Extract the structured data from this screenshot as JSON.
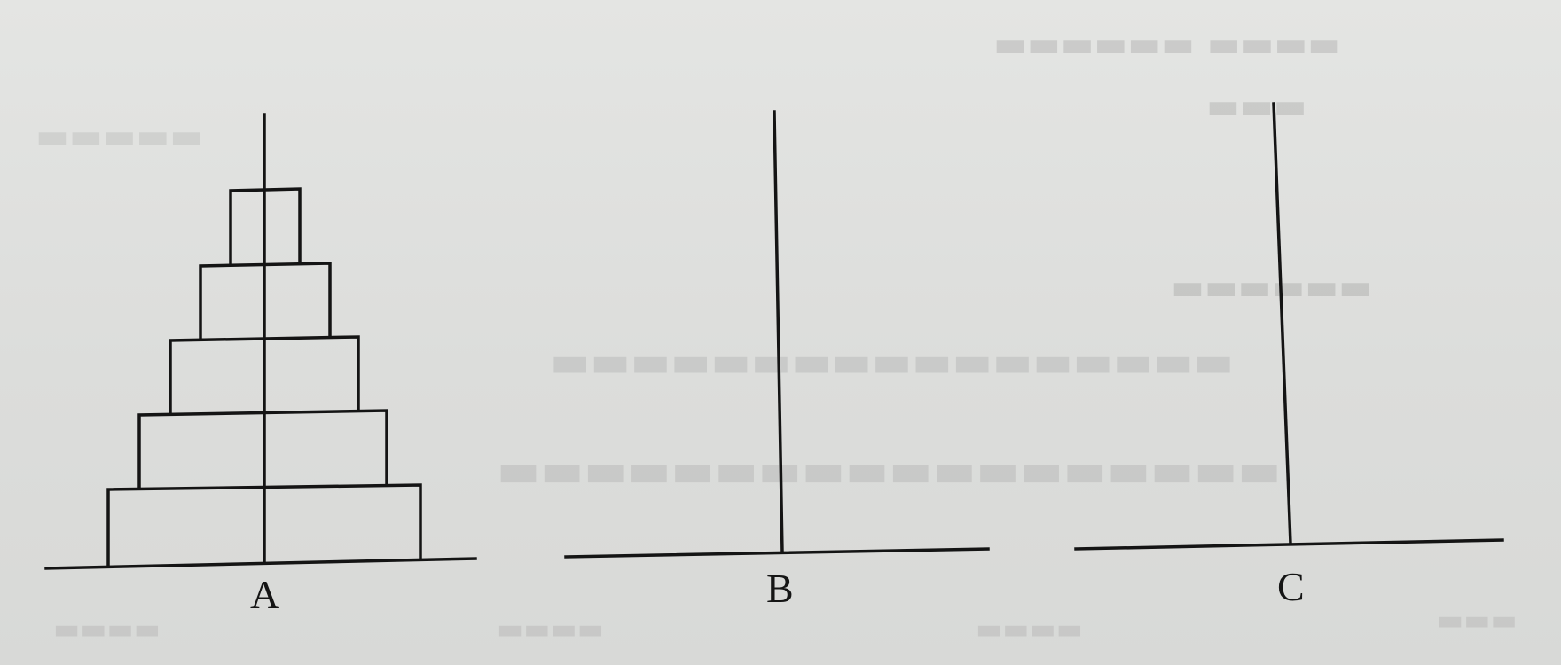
{
  "figure": {
    "type": "tower-of-hanoi",
    "disk_count": 5,
    "disk_location": "A",
    "pegs": [
      {
        "id": "A",
        "label": "A"
      },
      {
        "id": "B",
        "label": "B"
      },
      {
        "id": "C",
        "label": "C"
      }
    ]
  },
  "colors": {
    "ink": "#141414",
    "paper": "#dedfdd"
  }
}
